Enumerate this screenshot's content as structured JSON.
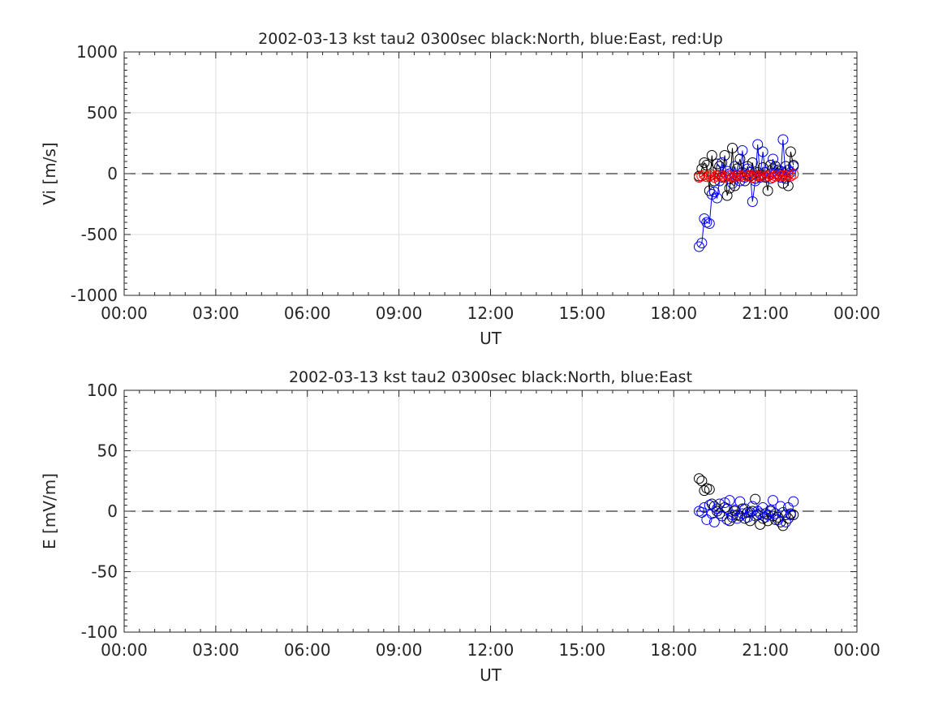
{
  "chart_data": [
    {
      "type": "scatter",
      "title": "2002-03-13 kst tau2 0300sec black:North, blue:East, red:Up",
      "xlabel": "UT",
      "ylabel": "Vi [m/s]",
      "x_ticks": [
        "00:00",
        "03:00",
        "06:00",
        "09:00",
        "12:00",
        "15:00",
        "18:00",
        "21:00",
        "00:00"
      ],
      "y_ticks": [
        "1000",
        "500",
        "0",
        "-500",
        "-1000"
      ],
      "xlim_hours": [
        0,
        24
      ],
      "ylim": [
        -1000,
        1000
      ],
      "grid": true,
      "zero_line": "dashed",
      "series": [
        {
          "name": "North",
          "color": "#000000",
          "marker": "circle",
          "line": true,
          "x_hours": [
            18.83,
            18.92,
            19.0,
            19.08,
            19.17,
            19.25,
            19.33,
            19.42,
            19.5,
            19.58,
            19.67,
            19.75,
            19.83,
            19.92,
            20.0,
            20.08,
            20.17,
            20.25,
            20.33,
            20.42,
            20.5,
            20.58,
            20.67,
            20.75,
            20.83,
            20.92,
            21.0,
            21.08,
            21.17,
            21.25,
            21.33,
            21.42,
            21.5,
            21.58,
            21.67,
            21.75,
            21.83,
            21.92
          ],
          "values": [
            -20,
            40,
            90,
            70,
            -140,
            150,
            -60,
            80,
            60,
            -30,
            150,
            -180,
            -120,
            210,
            -100,
            40,
            120,
            10,
            -60,
            60,
            -20,
            90,
            -40,
            10,
            -10,
            50,
            -30,
            -140,
            70,
            40,
            60,
            0,
            20,
            -80,
            60,
            -100,
            180,
            70
          ]
        },
        {
          "name": "East",
          "color": "#0000ff",
          "marker": "circle",
          "line": true,
          "x_hours": [
            18.83,
            18.92,
            19.0,
            19.08,
            19.17,
            19.25,
            19.33,
            19.42,
            19.5,
            19.58,
            19.67,
            19.75,
            19.83,
            19.92,
            20.0,
            20.08,
            20.17,
            20.25,
            20.33,
            20.42,
            20.5,
            20.58,
            20.67,
            20.75,
            20.83,
            20.92,
            21.0,
            21.08,
            21.17,
            21.25,
            21.33,
            21.42,
            21.5,
            21.58,
            21.67,
            21.75,
            21.83,
            21.92
          ],
          "values": [
            -600,
            -570,
            -370,
            -400,
            -410,
            -170,
            -150,
            -200,
            -60,
            90,
            -30,
            20,
            0,
            -80,
            60,
            -20,
            -60,
            190,
            -30,
            40,
            10,
            -230,
            -60,
            240,
            -30,
            180,
            10,
            -20,
            -40,
            120,
            0,
            30,
            -30,
            280,
            -40,
            30,
            10,
            60
          ]
        },
        {
          "name": "Up",
          "color": "#ff0000",
          "marker": "circle",
          "line": true,
          "x_hours": [
            18.83,
            18.92,
            19.0,
            19.08,
            19.17,
            19.25,
            19.33,
            19.42,
            19.5,
            19.58,
            19.67,
            19.75,
            19.83,
            19.92,
            20.0,
            20.08,
            20.17,
            20.25,
            20.33,
            20.42,
            20.5,
            20.58,
            20.67,
            20.75,
            20.83,
            20.92,
            21.0,
            21.08,
            21.17,
            21.25,
            21.33,
            21.42,
            21.5,
            21.58,
            21.67,
            21.75,
            21.83,
            21.92
          ],
          "values": [
            -30,
            -20,
            -10,
            -25,
            -20,
            -10,
            -30,
            -20,
            -10,
            -20,
            -30,
            -10,
            -20,
            -30,
            -20,
            -10,
            -20,
            -25,
            -10,
            -20,
            -15,
            -30,
            -10,
            -20,
            -20,
            -10,
            -25,
            -20,
            -10,
            -30,
            -20,
            -10,
            -20,
            -15,
            -20,
            -10,
            -20,
            -5
          ]
        }
      ]
    },
    {
      "type": "scatter",
      "title": "2002-03-13 kst tau2 0300sec black:North, blue:East",
      "xlabel": "UT",
      "ylabel": "E [mV/m]",
      "x_ticks": [
        "00:00",
        "03:00",
        "06:00",
        "09:00",
        "12:00",
        "15:00",
        "18:00",
        "21:00",
        "00:00"
      ],
      "y_ticks": [
        "100",
        "50",
        "0",
        "-50",
        "-100"
      ],
      "xlim_hours": [
        0,
        24
      ],
      "ylim": [
        -100,
        100
      ],
      "grid": true,
      "zero_line": "dashed",
      "series": [
        {
          "name": "North",
          "color": "#000000",
          "marker": "circle",
          "line": false,
          "x_hours": [
            18.83,
            18.92,
            19.0,
            19.08,
            19.17,
            19.25,
            19.33,
            19.42,
            19.5,
            19.58,
            19.67,
            19.75,
            19.83,
            19.92,
            20.0,
            20.08,
            20.17,
            20.25,
            20.33,
            20.42,
            20.5,
            20.58,
            20.67,
            20.75,
            20.83,
            20.92,
            21.0,
            21.08,
            21.17,
            21.25,
            21.33,
            21.42,
            21.5,
            21.58,
            21.67,
            21.75,
            21.83,
            21.92
          ],
          "values": [
            27,
            25,
            17,
            19,
            18,
            6,
            4,
            0,
            -2,
            -4,
            3,
            2,
            -8,
            -5,
            0,
            -3,
            -4,
            2,
            -6,
            -1,
            -8,
            0,
            10,
            -3,
            -11,
            -6,
            -2,
            -8,
            0,
            -4,
            -7,
            -5,
            -9,
            -12,
            -3,
            -6,
            -2,
            -3
          ]
        },
        {
          "name": "East",
          "color": "#0000ff",
          "marker": "circle",
          "line": false,
          "x_hours": [
            18.83,
            18.92,
            19.0,
            19.08,
            19.17,
            19.25,
            19.33,
            19.42,
            19.5,
            19.58,
            19.67,
            19.75,
            19.83,
            19.92,
            20.0,
            20.08,
            20.17,
            20.25,
            20.33,
            20.42,
            20.5,
            20.58,
            20.67,
            20.75,
            20.83,
            20.92,
            21.0,
            21.08,
            21.17,
            21.25,
            21.33,
            21.42,
            21.5,
            21.58,
            21.67,
            21.75,
            21.83,
            21.92
          ],
          "values": [
            0,
            -1,
            3,
            -7,
            5,
            -2,
            -9,
            2,
            6,
            -4,
            7,
            -7,
            9,
            -3,
            1,
            -6,
            8,
            -2,
            2,
            -5,
            -1,
            4,
            -4,
            0,
            -2,
            3,
            -5,
            -3,
            1,
            9,
            -2,
            -7,
            4,
            -1,
            -9,
            3,
            -3,
            8
          ]
        }
      ]
    }
  ]
}
